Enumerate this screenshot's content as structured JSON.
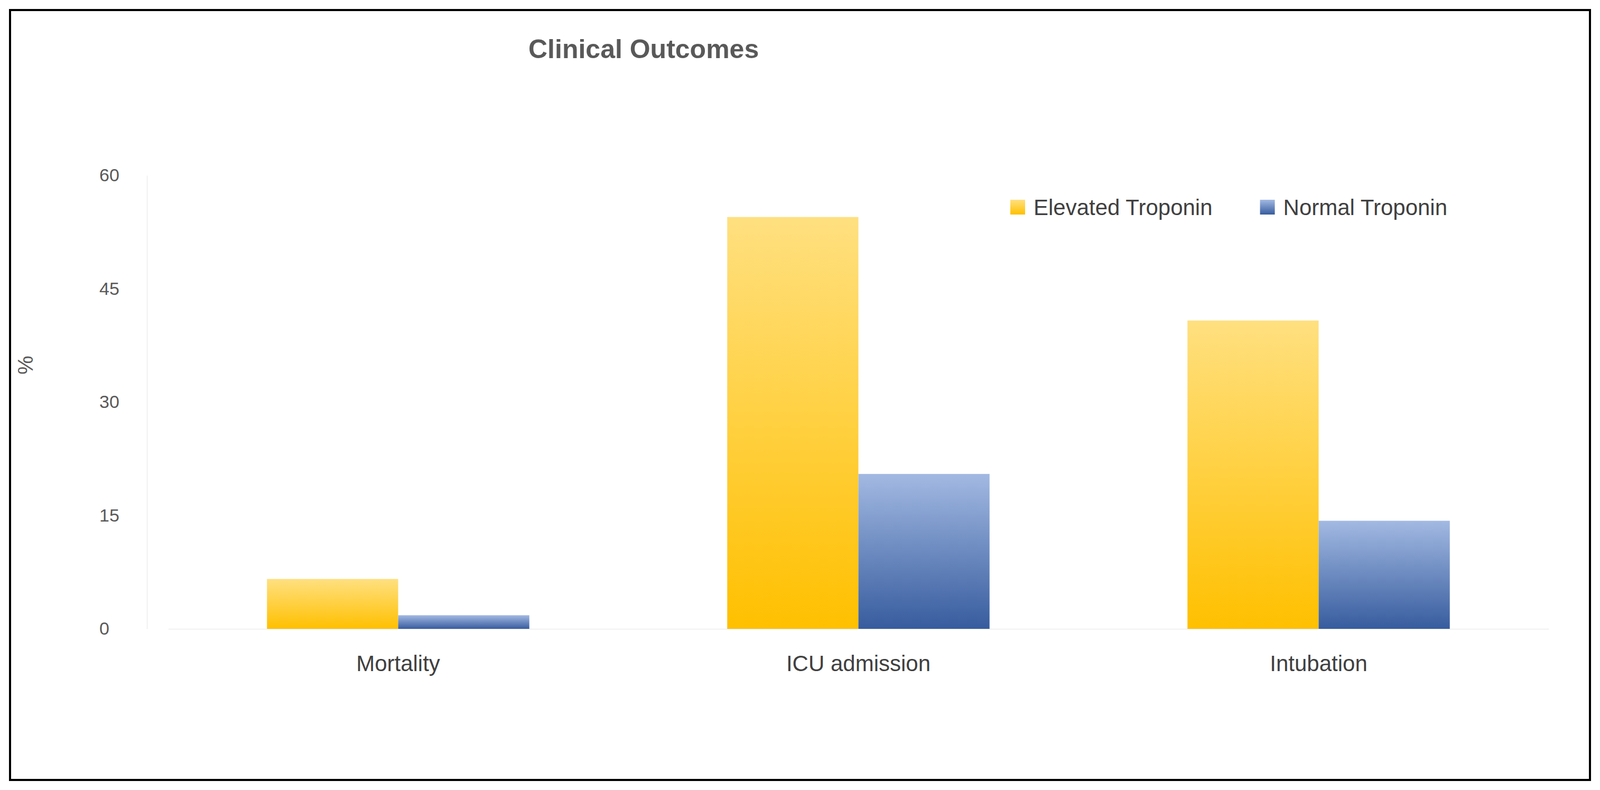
{
  "chart_data": {
    "type": "bar",
    "title": "Clinical Outcomes",
    "y_label": "%",
    "categories": [
      "Mortality",
      "ICU admission",
      "Intubation"
    ],
    "series": [
      {
        "name": "Elevated Troponin",
        "color": "#FFC000",
        "values": [
          6.6,
          54.5,
          40.8
        ]
      },
      {
        "name": "Normal Troponin",
        "color": "#4472C4",
        "values": [
          1.8,
          20.5,
          14.3
        ]
      }
    ],
    "ylim": [
      0,
      60
    ],
    "yticks": [
      0,
      15,
      30,
      45,
      60
    ],
    "grid": false,
    "legend": "top-right"
  }
}
